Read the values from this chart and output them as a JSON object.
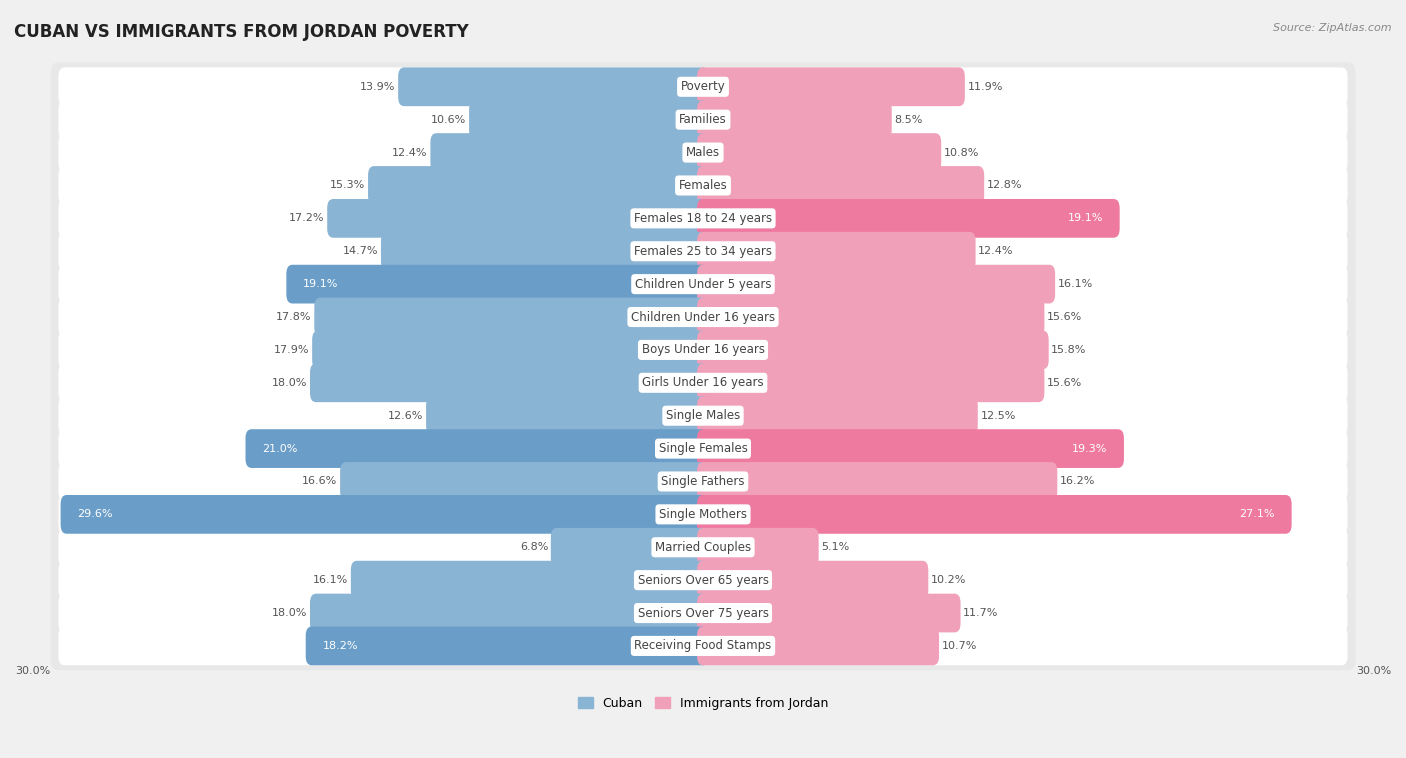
{
  "title": "CUBAN VS IMMIGRANTS FROM JORDAN POVERTY",
  "source": "Source: ZipAtlas.com",
  "categories": [
    "Poverty",
    "Families",
    "Males",
    "Females",
    "Females 18 to 24 years",
    "Females 25 to 34 years",
    "Children Under 5 years",
    "Children Under 16 years",
    "Boys Under 16 years",
    "Girls Under 16 years",
    "Single Males",
    "Single Females",
    "Single Fathers",
    "Single Mothers",
    "Married Couples",
    "Seniors Over 65 years",
    "Seniors Over 75 years",
    "Receiving Food Stamps"
  ],
  "cuban_values": [
    13.9,
    10.6,
    12.4,
    15.3,
    17.2,
    14.7,
    19.1,
    17.8,
    17.9,
    18.0,
    12.6,
    21.0,
    16.6,
    29.6,
    6.8,
    16.1,
    18.0,
    18.2
  ],
  "jordan_values": [
    11.9,
    8.5,
    10.8,
    12.8,
    19.1,
    12.4,
    16.1,
    15.6,
    15.8,
    15.6,
    12.5,
    19.3,
    16.2,
    27.1,
    5.1,
    10.2,
    11.7,
    10.7
  ],
  "cuban_color": "#8ab4d4",
  "jordan_color": "#f0a0b8",
  "cuban_highlight_color": "#6a9ec8",
  "jordan_highlight_color": "#ee7aa0",
  "xlim": 30.0,
  "background_color": "#f0f0f0",
  "row_bg_color": "#e8e8e8",
  "bar_bg_color": "#ffffff",
  "title_fontsize": 12,
  "label_fontsize": 8.5,
  "value_fontsize": 8,
  "legend_fontsize": 9,
  "source_fontsize": 8,
  "cuban_highlight_idx": [
    6,
    11,
    13,
    17
  ],
  "jordan_highlight_idx": [
    4,
    11,
    13
  ]
}
